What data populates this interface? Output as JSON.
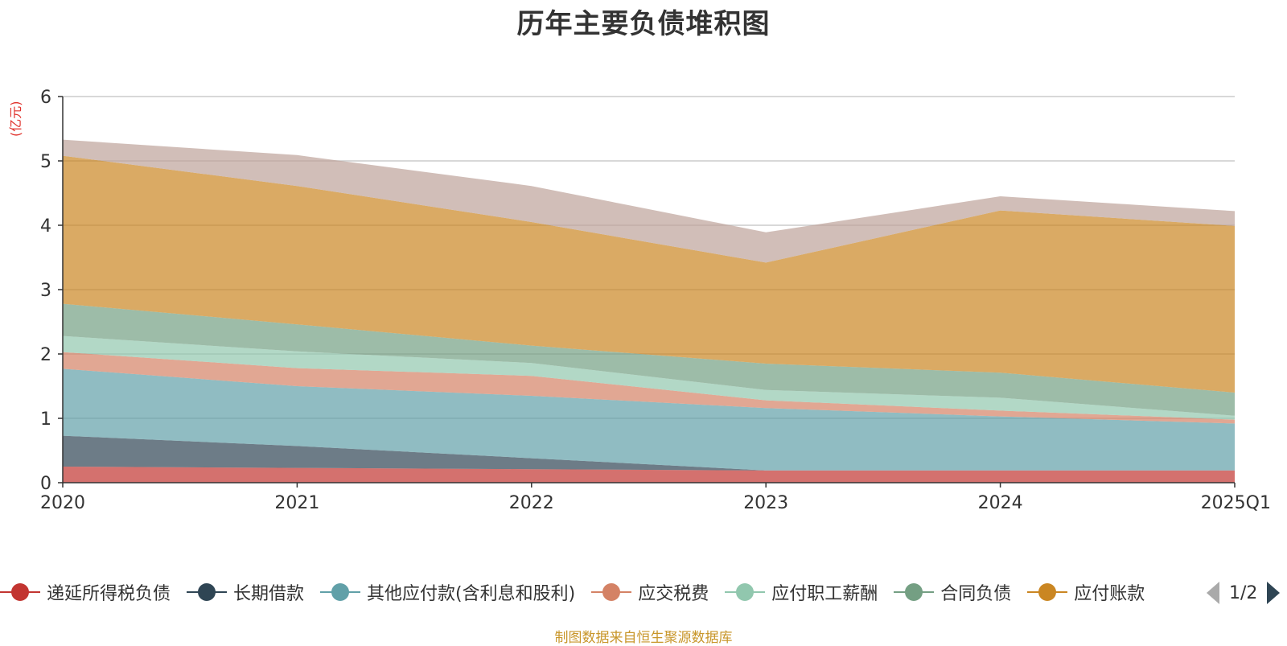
{
  "chart_data": {
    "type": "area",
    "stacked": true,
    "title": "历年主要负债堆积图",
    "ylabel": "(亿元)",
    "xlabel": "",
    "categories": [
      "2020",
      "2021",
      "2022",
      "2023",
      "2024",
      "2025Q1"
    ],
    "ylim": [
      0,
      6
    ],
    "yticks": [
      0,
      1,
      2,
      3,
      4,
      5,
      6
    ],
    "grid": true,
    "series": [
      {
        "name": "递延所得税负债",
        "color": "#c23531",
        "values": [
          0.25,
          0.23,
          0.21,
          0.19,
          0.19,
          0.19
        ]
      },
      {
        "name": "长期借款",
        "color": "#2f4554",
        "values": [
          0.48,
          0.34,
          0.17,
          0.0,
          0.0,
          0.0
        ]
      },
      {
        "name": "其他应付款(含利息和股利)",
        "color": "#61a0a8",
        "values": [
          1.04,
          0.93,
          0.97,
          0.97,
          0.84,
          0.73
        ]
      },
      {
        "name": "应交税费",
        "color": "#d48265",
        "values": [
          0.26,
          0.28,
          0.31,
          0.12,
          0.09,
          0.06
        ]
      },
      {
        "name": "应付职工薪酬",
        "color": "#91c7ae",
        "values": [
          0.25,
          0.26,
          0.2,
          0.16,
          0.2,
          0.06
        ]
      },
      {
        "name": "合同负债",
        "color": "#749f83",
        "values": [
          0.5,
          0.42,
          0.27,
          0.41,
          0.39,
          0.36
        ]
      },
      {
        "name": "应付账款",
        "color": "#ca8622",
        "values": [
          2.3,
          2.15,
          1.92,
          1.57,
          2.52,
          2.59
        ]
      },
      {
        "name": "",
        "color": "#bda29a",
        "values": [
          0.25,
          0.48,
          0.56,
          0.47,
          0.22,
          0.23
        ]
      }
    ],
    "legend_visible": [
      "递延所得税负债",
      "长期借款",
      "其他应付款(含利息和股利)",
      "应交税费",
      "应付职工薪酬",
      "合同负债",
      "应付账款"
    ],
    "legend_page": "1/2",
    "source": "制图数据来自恒生聚源数据库"
  }
}
